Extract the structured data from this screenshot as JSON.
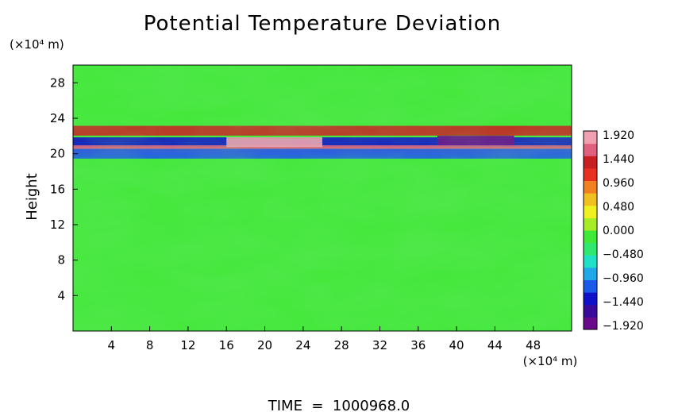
{
  "chart_data": {
    "type": "heatmap",
    "title": "Potential Temperature Deviation",
    "ylabel": "Height",
    "y_unit_label": "(×10⁴ m)",
    "x_unit_label": "(×10⁴ m)",
    "xlim": [
      0,
      52
    ],
    "ylim": [
      0,
      30
    ],
    "x_ticks": [
      4,
      8,
      12,
      16,
      20,
      24,
      28,
      32,
      36,
      40,
      44,
      48
    ],
    "x_tick_labels": [
      "4",
      "8",
      "12",
      "16",
      "20",
      "24",
      "28",
      "32",
      "36",
      "40",
      "44",
      "48"
    ],
    "y_ticks": [
      4,
      8,
      12,
      16,
      20,
      24,
      28
    ],
    "y_tick_labels": [
      "4",
      "8",
      "12",
      "16",
      "20",
      "24",
      "28"
    ],
    "colorbar": {
      "range": [
        -1.92,
        1.92
      ],
      "tick_labels": [
        "1.920",
        "1.440",
        "0.960",
        "0.480",
        "0.000",
        "−0.480",
        "−0.960",
        "−1.440",
        "−1.920"
      ],
      "colors": [
        "#6a0a8a",
        "#3a0a9a",
        "#1010c8",
        "#1a5ae8",
        "#20a8e8",
        "#20e0c8",
        "#30e870",
        "#40e838",
        "#a8ec28",
        "#f0f020",
        "#f0c020",
        "#f08020",
        "#e83020",
        "#c82020",
        "#e06080",
        "#f0a0b0"
      ]
    },
    "features": [
      {
        "x_range": [
          0,
          52
        ],
        "y": 22.6,
        "value": 1.2
      },
      {
        "x_range": [
          0,
          52
        ],
        "y": 21.3,
        "value": -1.4
      },
      {
        "x_range": [
          0,
          52
        ],
        "y": 20.4,
        "value": 1.6
      },
      {
        "x_range": [
          0,
          52
        ],
        "y": 20.0,
        "value": -1.2
      },
      {
        "x_range": [
          38,
          46
        ],
        "y": 21.5,
        "value": -1.9
      },
      {
        "x_range": [
          16,
          26
        ],
        "y": 21.3,
        "value": 1.9
      }
    ],
    "background_value": 0.0,
    "time_label": "TIME  =  1000968.0"
  }
}
